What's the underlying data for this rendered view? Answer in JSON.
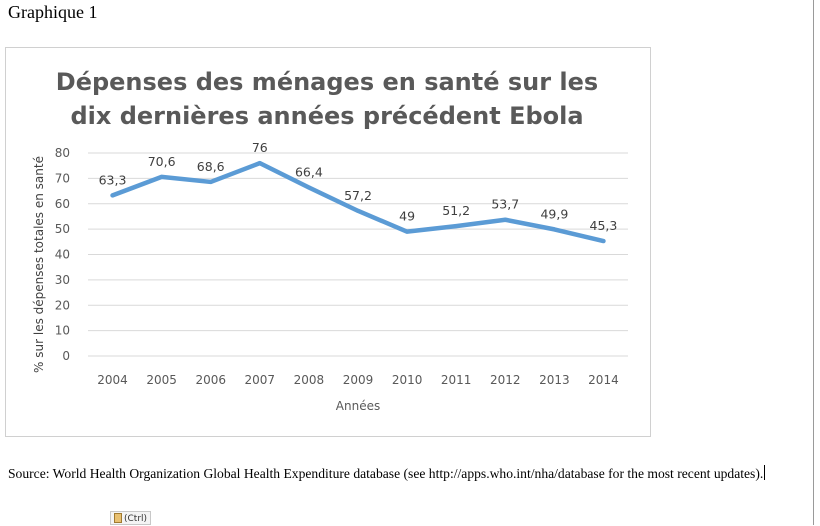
{
  "heading": "Graphique 1",
  "source": {
    "text": "Source: World Health Organization Global Health Expenditure database (see http://apps.who.int/nha/database for the most recent updates).",
    "paste_label": "(Ctrl)",
    "paste_icon": "clipboard-icon"
  },
  "chart_data": {
    "type": "line",
    "title_lines": [
      "Dépenses des ménages en santé sur les",
      "dix dernières années précédent Ebola"
    ],
    "xlabel": "Années",
    "ylabel": "% sur les dépenses totales en santé",
    "x": [
      "2004",
      "2005",
      "2006",
      "2007",
      "2008",
      "2009",
      "2010",
      "2011",
      "2012",
      "2013",
      "2014"
    ],
    "series": [
      {
        "values": [
          63.3,
          70.6,
          68.6,
          76,
          66.4,
          57.2,
          49,
          51.2,
          53.7,
          49.9,
          45.3
        ],
        "labels": [
          "63,3",
          "70,6",
          "68,6",
          "76",
          "66,4",
          "57,2",
          "49",
          "51,2",
          "53,7",
          "49,9",
          "45,3"
        ],
        "color": "#5b9bd5"
      }
    ],
    "yticks": [
      "0",
      "10",
      "20",
      "30",
      "40",
      "50",
      "60",
      "70",
      "80"
    ],
    "ylim": [
      0,
      80
    ],
    "grid": true,
    "legend": "none"
  }
}
